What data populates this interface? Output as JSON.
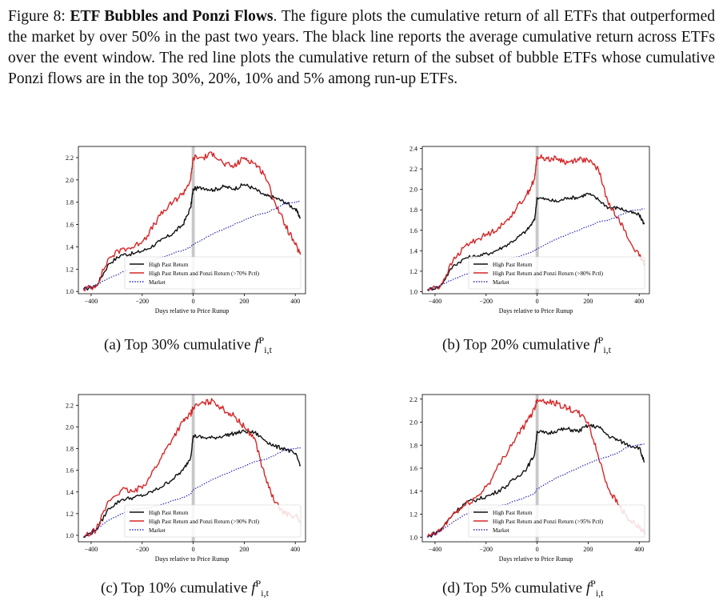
{
  "caption": {
    "figure_label": "Figure 8:",
    "title": "ETF Bubbles and Ponzi Flows",
    "body": ". The figure plots the cumulative return of all ETFs that outperformed the market by over 50% in the past two years. The black line reports the average cumulative return across ETFs over the event window. The red line plots the cumulative return of the subset of bubble ETFs whose cumulative Ponzi flows are in the top 30%, 20%, 10% and 5% among run-up ETFs."
  },
  "colors": {
    "black_line": "#111111",
    "red_line": "#d62728",
    "market_line": "#1f1fb4",
    "shade": "#c8c8c8"
  },
  "chart_data": [
    {
      "type": "line",
      "subcaption": "(a) Top 30% cumulative",
      "math_sym": "f",
      "math_sup": "P",
      "math_sub": "i,t",
      "xlabel": "Days relative to Price Runup",
      "xlim": [
        -450,
        440
      ],
      "ylim": [
        0.98,
        2.3
      ],
      "xticks": [
        -400,
        -200,
        0,
        200,
        400
      ],
      "yticks": [
        1.0,
        1.2,
        1.4,
        1.6,
        1.8,
        2.0,
        2.2
      ],
      "legend": [
        "High Past Return",
        "High Past Return and Ponzi Return (>70% Pctl)",
        "Market"
      ],
      "series": [
        {
          "name": "High Past Return",
          "x": [
            -430,
            -380,
            -330,
            -280,
            -230,
            -180,
            -130,
            -80,
            -40,
            -10,
            0,
            40,
            80,
            120,
            160,
            200,
            240,
            280,
            320,
            360,
            400,
            420
          ],
          "y": [
            1.02,
            1.05,
            1.25,
            1.33,
            1.34,
            1.38,
            1.45,
            1.52,
            1.6,
            1.75,
            1.92,
            1.93,
            1.91,
            1.94,
            1.92,
            1.96,
            1.92,
            1.86,
            1.84,
            1.8,
            1.74,
            1.66
          ]
        },
        {
          "name": "High Past Return and Ponzi Return",
          "x": [
            -430,
            -380,
            -330,
            -280,
            -230,
            -180,
            -130,
            -80,
            -40,
            -10,
            0,
            40,
            80,
            120,
            160,
            200,
            240,
            280,
            320,
            360,
            400,
            420
          ],
          "y": [
            1.02,
            1.05,
            1.3,
            1.38,
            1.4,
            1.5,
            1.68,
            1.8,
            1.88,
            2.0,
            2.2,
            2.2,
            2.24,
            2.14,
            2.12,
            2.2,
            2.15,
            2.05,
            1.8,
            1.6,
            1.42,
            1.33
          ]
        },
        {
          "name": "Market",
          "x": [
            -430,
            -380,
            -330,
            -280,
            -230,
            -180,
            -130,
            -80,
            -40,
            -10,
            0,
            40,
            80,
            120,
            160,
            200,
            240,
            280,
            320,
            360,
            400,
            420
          ],
          "y": [
            1.02,
            1.06,
            1.12,
            1.17,
            1.21,
            1.26,
            1.3,
            1.34,
            1.37,
            1.4,
            1.42,
            1.47,
            1.52,
            1.56,
            1.6,
            1.64,
            1.68,
            1.7,
            1.74,
            1.79,
            1.8,
            1.81
          ]
        }
      ]
    },
    {
      "type": "line",
      "subcaption": "(b) Top 20% cumulative",
      "math_sym": "f",
      "math_sup": "P",
      "math_sub": "i,t",
      "xlabel": "Days relative to Price Runup",
      "xlim": [
        -450,
        440
      ],
      "ylim": [
        0.98,
        2.42
      ],
      "xticks": [
        -400,
        -200,
        0,
        200,
        400
      ],
      "yticks": [
        1.0,
        1.2,
        1.4,
        1.6,
        1.8,
        2.0,
        2.2,
        2.4
      ],
      "legend": [
        "High Past Return",
        "High Past Return and Ponzi Return (>80% Pctl)",
        "Market"
      ],
      "series": [
        {
          "name": "High Past Return",
          "x": [
            -430,
            -380,
            -330,
            -280,
            -230,
            -180,
            -130,
            -80,
            -40,
            -10,
            0,
            40,
            80,
            120,
            160,
            200,
            240,
            280,
            320,
            360,
            400,
            420
          ],
          "y": [
            1.02,
            1.05,
            1.25,
            1.33,
            1.35,
            1.38,
            1.44,
            1.52,
            1.6,
            1.7,
            1.92,
            1.9,
            1.88,
            1.92,
            1.92,
            1.96,
            1.9,
            1.82,
            1.82,
            1.78,
            1.75,
            1.66
          ]
        },
        {
          "name": "High Past Return and Ponzi Return",
          "x": [
            -430,
            -380,
            -330,
            -280,
            -230,
            -180,
            -130,
            -80,
            -40,
            -10,
            0,
            40,
            80,
            120,
            160,
            200,
            240,
            280,
            320,
            360,
            400,
            420
          ],
          "y": [
            1.02,
            1.05,
            1.3,
            1.45,
            1.52,
            1.58,
            1.66,
            1.82,
            1.95,
            2.1,
            2.32,
            2.3,
            2.3,
            2.26,
            2.3,
            2.28,
            2.2,
            1.85,
            1.72,
            1.5,
            1.35,
            1.27
          ]
        },
        {
          "name": "Market",
          "x": [
            -430,
            -380,
            -330,
            -280,
            -230,
            -180,
            -130,
            -80,
            -40,
            -10,
            0,
            40,
            80,
            120,
            160,
            200,
            240,
            280,
            320,
            360,
            400,
            420
          ],
          "y": [
            1.02,
            1.06,
            1.12,
            1.17,
            1.21,
            1.26,
            1.3,
            1.34,
            1.37,
            1.4,
            1.42,
            1.47,
            1.52,
            1.56,
            1.6,
            1.64,
            1.68,
            1.7,
            1.74,
            1.79,
            1.8,
            1.81
          ]
        }
      ]
    },
    {
      "type": "line",
      "subcaption": "(c) Top 10% cumulative",
      "math_sym": "f",
      "math_sup": "P",
      "math_sub": "i,t",
      "xlabel": "Days relative to Price Runup",
      "xlim": [
        -450,
        440
      ],
      "ylim": [
        0.94,
        2.3
      ],
      "xticks": [
        -400,
        -200,
        0,
        200,
        400
      ],
      "yticks": [
        1.0,
        1.2,
        1.4,
        1.6,
        1.8,
        2.0,
        2.2
      ],
      "legend": [
        "High Past Return",
        "High Past Return and Ponzi Return (>90% Pctl)",
        "Market"
      ],
      "series": [
        {
          "name": "High Past Return",
          "x": [
            -430,
            -380,
            -330,
            -280,
            -230,
            -180,
            -130,
            -80,
            -40,
            -10,
            0,
            40,
            80,
            120,
            160,
            200,
            240,
            280,
            320,
            360,
            400,
            420
          ],
          "y": [
            0.98,
            1.05,
            1.25,
            1.33,
            1.35,
            1.38,
            1.44,
            1.52,
            1.6,
            1.72,
            1.92,
            1.9,
            1.9,
            1.92,
            1.94,
            1.96,
            1.95,
            1.88,
            1.82,
            1.8,
            1.75,
            1.65
          ]
        },
        {
          "name": "High Past Return and Ponzi Return",
          "x": [
            -430,
            -380,
            -330,
            -280,
            -230,
            -180,
            -130,
            -80,
            -40,
            -10,
            0,
            40,
            80,
            120,
            160,
            200,
            240,
            280,
            320,
            360,
            400,
            420
          ],
          "y": [
            0.98,
            1.05,
            1.32,
            1.42,
            1.4,
            1.5,
            1.7,
            1.9,
            2.05,
            2.12,
            2.18,
            2.22,
            2.24,
            2.16,
            2.1,
            2.0,
            1.9,
            1.55,
            1.3,
            1.2,
            1.18,
            1.12
          ]
        },
        {
          "name": "Market",
          "x": [
            -430,
            -380,
            -330,
            -280,
            -230,
            -180,
            -130,
            -80,
            -40,
            -10,
            0,
            40,
            80,
            120,
            160,
            200,
            240,
            280,
            320,
            360,
            400,
            420
          ],
          "y": [
            0.98,
            1.06,
            1.14,
            1.2,
            1.24,
            1.25,
            1.28,
            1.32,
            1.35,
            1.38,
            1.42,
            1.47,
            1.52,
            1.56,
            1.6,
            1.64,
            1.68,
            1.7,
            1.74,
            1.79,
            1.8,
            1.81
          ]
        }
      ]
    },
    {
      "type": "line",
      "subcaption": "(d) Top 5% cumulative",
      "math_sym": "f",
      "math_sup": "P",
      "math_sub": "i,t",
      "xlabel": "Days relative to Price Runup",
      "xlim": [
        -450,
        440
      ],
      "ylim": [
        0.96,
        2.24
      ],
      "xticks": [
        -400,
        -200,
        0,
        200,
        400
      ],
      "yticks": [
        1.0,
        1.2,
        1.4,
        1.6,
        1.8,
        2.0,
        2.2
      ],
      "legend": [
        "High Past Return",
        "High Past Return and Ponzi Return (>95% Pctl)",
        "Market"
      ],
      "series": [
        {
          "name": "High Past Return",
          "x": [
            -430,
            -380,
            -330,
            -280,
            -230,
            -180,
            -130,
            -80,
            -40,
            -10,
            0,
            40,
            80,
            120,
            160,
            200,
            240,
            280,
            320,
            360,
            400,
            420
          ],
          "y": [
            1.0,
            1.06,
            1.2,
            1.3,
            1.33,
            1.37,
            1.43,
            1.52,
            1.6,
            1.72,
            1.92,
            1.9,
            1.93,
            1.94,
            1.92,
            1.97,
            1.96,
            1.88,
            1.84,
            1.8,
            1.78,
            1.65
          ]
        },
        {
          "name": "High Past Return and Ponzi Return",
          "x": [
            -430,
            -380,
            -330,
            -280,
            -230,
            -180,
            -130,
            -80,
            -40,
            -10,
            0,
            40,
            80,
            120,
            160,
            200,
            240,
            280,
            320,
            360,
            400,
            420
          ],
          "y": [
            1.0,
            1.05,
            1.2,
            1.28,
            1.36,
            1.5,
            1.7,
            1.88,
            2.0,
            2.12,
            2.2,
            2.18,
            2.16,
            2.12,
            2.08,
            2.0,
            1.7,
            1.42,
            1.28,
            1.15,
            1.08,
            1.03
          ]
        },
        {
          "name": "Market",
          "x": [
            -430,
            -380,
            -330,
            -280,
            -230,
            -180,
            -130,
            -80,
            -40,
            -10,
            0,
            40,
            80,
            120,
            160,
            200,
            240,
            280,
            320,
            360,
            400,
            420
          ],
          "y": [
            1.0,
            1.05,
            1.13,
            1.2,
            1.24,
            1.25,
            1.28,
            1.32,
            1.35,
            1.38,
            1.42,
            1.47,
            1.52,
            1.56,
            1.6,
            1.64,
            1.68,
            1.7,
            1.74,
            1.79,
            1.8,
            1.81
          ]
        }
      ]
    }
  ]
}
